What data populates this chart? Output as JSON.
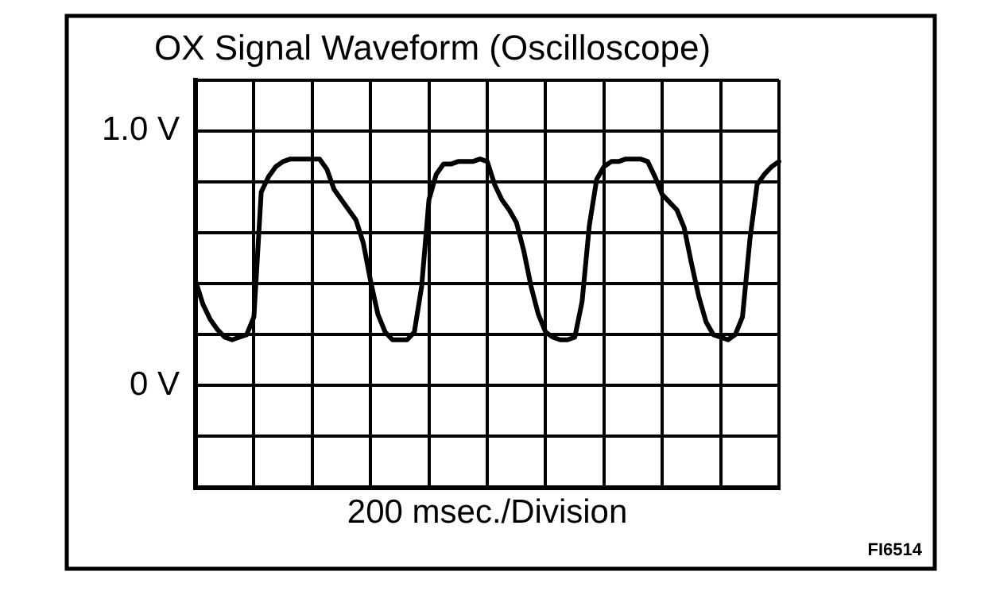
{
  "chart_data": {
    "type": "line",
    "title": "OX Signal Waveform (Oscilloscope)",
    "xlabel": "200 msec./Division",
    "annotations": [
      "FI6514"
    ],
    "categories": [
      null,
      null,
      null,
      null,
      null,
      null,
      null,
      null,
      null,
      null,
      null,
      null,
      null,
      null,
      null,
      null,
      null,
      null,
      null,
      null,
      null,
      null,
      null,
      null,
      null,
      null,
      null,
      null,
      null,
      null,
      null,
      null,
      null,
      null,
      null,
      null,
      null,
      null,
      null,
      null,
      null,
      null,
      null,
      null,
      null,
      null,
      null,
      null,
      null,
      null,
      null,
      null,
      null,
      null,
      null,
      null,
      null,
      null,
      null,
      null,
      null,
      null,
      null,
      null,
      null,
      null,
      null,
      null,
      null,
      null,
      null,
      null,
      null,
      null,
      null,
      null,
      null,
      null,
      null,
      null,
      null
    ],
    "series": [
      {
        "color": "#000000",
        "values": [
          0.41,
          0.32,
          0.26,
          0.22,
          0.19,
          0.18,
          0.19,
          0.2,
          0.27,
          0.76,
          0.82,
          0.86,
          0.88,
          0.89,
          0.89,
          0.89,
          0.89,
          0.89,
          0.85,
          0.77,
          0.73,
          0.69,
          0.65,
          0.56,
          0.41,
          0.28,
          0.21,
          0.18,
          0.18,
          0.18,
          0.21,
          0.39,
          0.73,
          0.83,
          0.87,
          0.87,
          0.88,
          0.88,
          0.88,
          0.89,
          0.88,
          0.79,
          0.73,
          0.69,
          0.64,
          0.53,
          0.39,
          0.28,
          0.21,
          0.19,
          0.18,
          0.18,
          0.19,
          0.33,
          0.63,
          0.81,
          0.86,
          0.88,
          0.88,
          0.89,
          0.89,
          0.89,
          0.88,
          0.82,
          0.75,
          0.72,
          0.69,
          0.62,
          0.48,
          0.35,
          0.25,
          0.2,
          0.19,
          0.18,
          0.2,
          0.27,
          0.57,
          0.79,
          0.83,
          0.86,
          0.88
        ]
      }
    ],
    "ylim": [
      -0.4,
      1.2
    ],
    "yticks": [
      {
        "value": -0.4,
        "label": null
      },
      {
        "value": -0.2,
        "label": null
      },
      {
        "value": 0,
        "label": "0 V"
      },
      {
        "value": 0.2,
        "label": null
      },
      {
        "value": 0.4,
        "label": null
      },
      {
        "value": 0.6,
        "label": null
      },
      {
        "value": 0.8,
        "label": null
      },
      {
        "value": 1.0,
        "label": "1.0 V"
      },
      {
        "value": 1.2,
        "label": null
      }
    ],
    "tick_labels": "y",
    "grid": true,
    "marker": "none",
    "line_style": "solid",
    "legend": false
  }
}
